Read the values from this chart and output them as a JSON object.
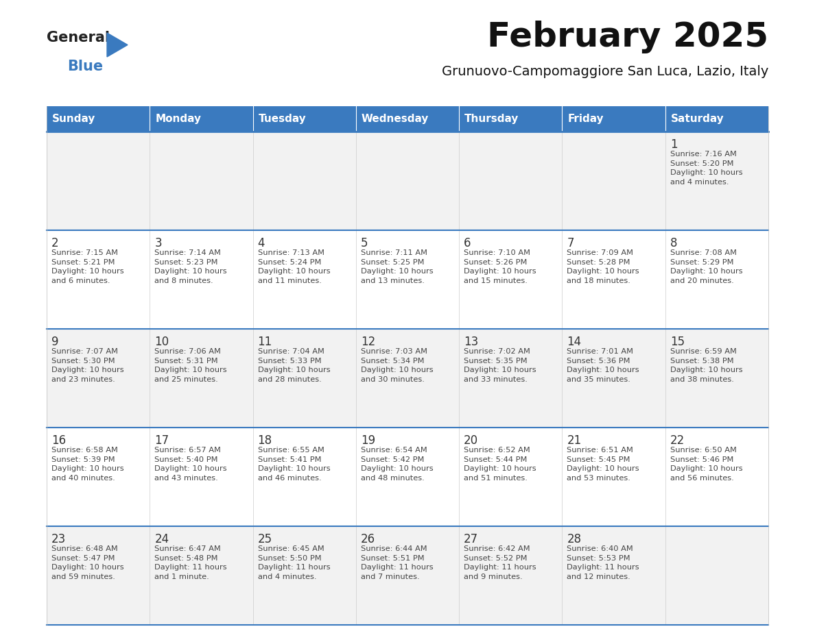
{
  "title": "February 2025",
  "subtitle": "Grunuovo-Campomaggiore San Luca, Lazio, Italy",
  "header_color": "#3a7abf",
  "header_text_color": "#ffffff",
  "row_color_even": "#f2f2f2",
  "row_color_odd": "#ffffff",
  "text_color": "#333333",
  "separator_color": "#3a7abf",
  "logo_color": "#3a7abf",
  "days_of_week": [
    "Sunday",
    "Monday",
    "Tuesday",
    "Wednesday",
    "Thursday",
    "Friday",
    "Saturday"
  ],
  "weeks": [
    [
      {
        "day": null,
        "info": null
      },
      {
        "day": null,
        "info": null
      },
      {
        "day": null,
        "info": null
      },
      {
        "day": null,
        "info": null
      },
      {
        "day": null,
        "info": null
      },
      {
        "day": null,
        "info": null
      },
      {
        "day": "1",
        "info": "Sunrise: 7:16 AM\nSunset: 5:20 PM\nDaylight: 10 hours\nand 4 minutes."
      }
    ],
    [
      {
        "day": "2",
        "info": "Sunrise: 7:15 AM\nSunset: 5:21 PM\nDaylight: 10 hours\nand 6 minutes."
      },
      {
        "day": "3",
        "info": "Sunrise: 7:14 AM\nSunset: 5:23 PM\nDaylight: 10 hours\nand 8 minutes."
      },
      {
        "day": "4",
        "info": "Sunrise: 7:13 AM\nSunset: 5:24 PM\nDaylight: 10 hours\nand 11 minutes."
      },
      {
        "day": "5",
        "info": "Sunrise: 7:11 AM\nSunset: 5:25 PM\nDaylight: 10 hours\nand 13 minutes."
      },
      {
        "day": "6",
        "info": "Sunrise: 7:10 AM\nSunset: 5:26 PM\nDaylight: 10 hours\nand 15 minutes."
      },
      {
        "day": "7",
        "info": "Sunrise: 7:09 AM\nSunset: 5:28 PM\nDaylight: 10 hours\nand 18 minutes."
      },
      {
        "day": "8",
        "info": "Sunrise: 7:08 AM\nSunset: 5:29 PM\nDaylight: 10 hours\nand 20 minutes."
      }
    ],
    [
      {
        "day": "9",
        "info": "Sunrise: 7:07 AM\nSunset: 5:30 PM\nDaylight: 10 hours\nand 23 minutes."
      },
      {
        "day": "10",
        "info": "Sunrise: 7:06 AM\nSunset: 5:31 PM\nDaylight: 10 hours\nand 25 minutes."
      },
      {
        "day": "11",
        "info": "Sunrise: 7:04 AM\nSunset: 5:33 PM\nDaylight: 10 hours\nand 28 minutes."
      },
      {
        "day": "12",
        "info": "Sunrise: 7:03 AM\nSunset: 5:34 PM\nDaylight: 10 hours\nand 30 minutes."
      },
      {
        "day": "13",
        "info": "Sunrise: 7:02 AM\nSunset: 5:35 PM\nDaylight: 10 hours\nand 33 minutes."
      },
      {
        "day": "14",
        "info": "Sunrise: 7:01 AM\nSunset: 5:36 PM\nDaylight: 10 hours\nand 35 minutes."
      },
      {
        "day": "15",
        "info": "Sunrise: 6:59 AM\nSunset: 5:38 PM\nDaylight: 10 hours\nand 38 minutes."
      }
    ],
    [
      {
        "day": "16",
        "info": "Sunrise: 6:58 AM\nSunset: 5:39 PM\nDaylight: 10 hours\nand 40 minutes."
      },
      {
        "day": "17",
        "info": "Sunrise: 6:57 AM\nSunset: 5:40 PM\nDaylight: 10 hours\nand 43 minutes."
      },
      {
        "day": "18",
        "info": "Sunrise: 6:55 AM\nSunset: 5:41 PM\nDaylight: 10 hours\nand 46 minutes."
      },
      {
        "day": "19",
        "info": "Sunrise: 6:54 AM\nSunset: 5:42 PM\nDaylight: 10 hours\nand 48 minutes."
      },
      {
        "day": "20",
        "info": "Sunrise: 6:52 AM\nSunset: 5:44 PM\nDaylight: 10 hours\nand 51 minutes."
      },
      {
        "day": "21",
        "info": "Sunrise: 6:51 AM\nSunset: 5:45 PM\nDaylight: 10 hours\nand 53 minutes."
      },
      {
        "day": "22",
        "info": "Sunrise: 6:50 AM\nSunset: 5:46 PM\nDaylight: 10 hours\nand 56 minutes."
      }
    ],
    [
      {
        "day": "23",
        "info": "Sunrise: 6:48 AM\nSunset: 5:47 PM\nDaylight: 10 hours\nand 59 minutes."
      },
      {
        "day": "24",
        "info": "Sunrise: 6:47 AM\nSunset: 5:48 PM\nDaylight: 11 hours\nand 1 minute."
      },
      {
        "day": "25",
        "info": "Sunrise: 6:45 AM\nSunset: 5:50 PM\nDaylight: 11 hours\nand 4 minutes."
      },
      {
        "day": "26",
        "info": "Sunrise: 6:44 AM\nSunset: 5:51 PM\nDaylight: 11 hours\nand 7 minutes."
      },
      {
        "day": "27",
        "info": "Sunrise: 6:42 AM\nSunset: 5:52 PM\nDaylight: 11 hours\nand 9 minutes."
      },
      {
        "day": "28",
        "info": "Sunrise: 6:40 AM\nSunset: 5:53 PM\nDaylight: 11 hours\nand 12 minutes."
      },
      {
        "day": null,
        "info": null
      }
    ]
  ]
}
